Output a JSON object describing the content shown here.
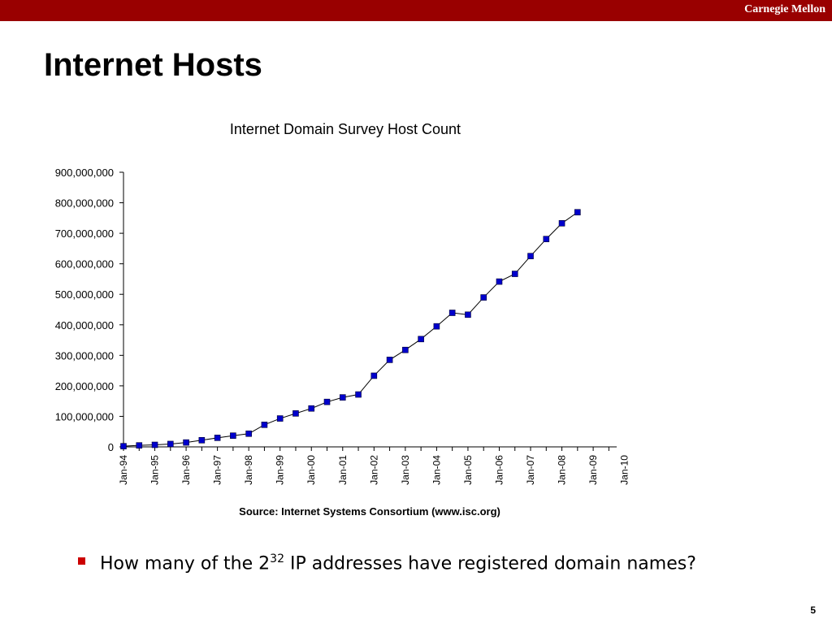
{
  "header": {
    "brand": "Carnegie Mellon"
  },
  "slide": {
    "title": "Internet Hosts",
    "page_number": "5"
  },
  "bullet": {
    "prefix": "How many of the 2",
    "superscript": "32",
    "suffix": " IP addresses have registered domain names?"
  },
  "colors": {
    "accent": "#990000",
    "bullet": "#cc0000",
    "series_marker": "#0000cc"
  },
  "chart_data": {
    "type": "line",
    "title": "Internet Domain Survey Host Count",
    "source": "Source: Internet Systems Consortium (www.isc.org)",
    "ylim": [
      0,
      900000000
    ],
    "yticks": [
      {
        "value": 0,
        "label": "0"
      },
      {
        "value": 100000000,
        "label": "100,000,000"
      },
      {
        "value": 200000000,
        "label": "200,000,000"
      },
      {
        "value": 300000000,
        "label": "300,000,000"
      },
      {
        "value": 400000000,
        "label": "400,000,000"
      },
      {
        "value": 500000000,
        "label": "500,000,000"
      },
      {
        "value": 600000000,
        "label": "600,000,000"
      },
      {
        "value": 700000000,
        "label": "700,000,000"
      },
      {
        "value": 800000000,
        "label": "800,000,000"
      },
      {
        "value": 900000000,
        "label": "900,000,000"
      }
    ],
    "xticks": [
      "Jan-94",
      "Jan-95",
      "Jan-96",
      "Jan-97",
      "Jan-98",
      "Jan-99",
      "Jan-00",
      "Jan-01",
      "Jan-02",
      "Jan-03",
      "Jan-04",
      "Jan-05",
      "Jan-06",
      "Jan-07",
      "Jan-08",
      "Jan-09",
      "Jan-10"
    ],
    "x_period_per_tick": "1 year; data points every 6 months",
    "series": [
      {
        "values": [
          2217000,
          4852000,
          6642000,
          9472000,
          14352000,
          21819000,
          29670000,
          36739000,
          43230000,
          72398092,
          93047785,
          109574429,
          125888197,
          147344723,
          162128493,
          171638297,
          233101481,
          285139107,
          317646084,
          353284187,
          394991609,
          439286364,
          433193199,
          489774269,
          541677360,
          567000000,
          625226456,
          681064561,
          732740444,
          768913036
        ]
      }
    ]
  }
}
